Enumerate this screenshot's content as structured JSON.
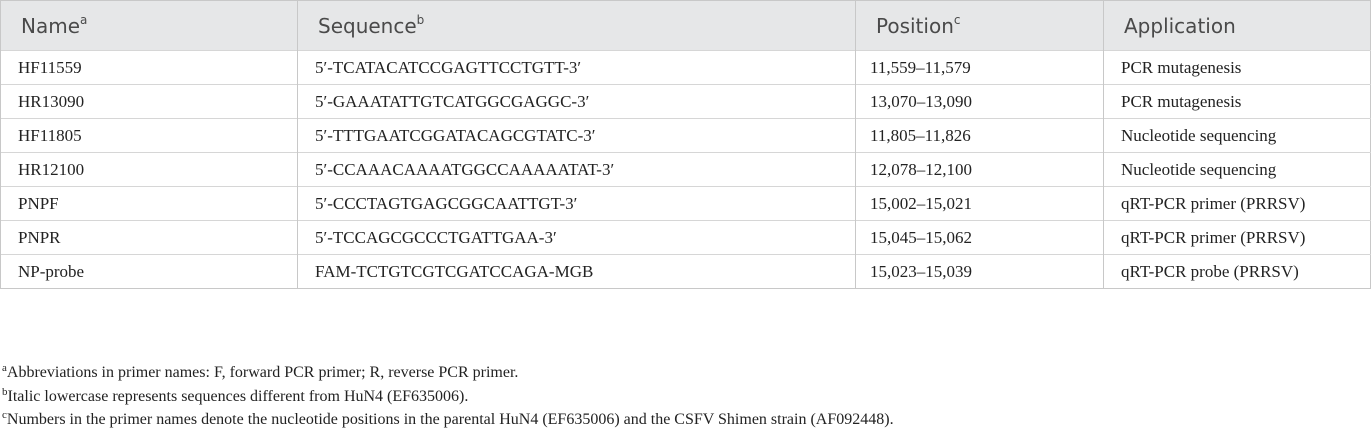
{
  "table": {
    "columns": [
      {
        "label": "Name",
        "note": "a"
      },
      {
        "label": "Sequence",
        "note": "b"
      },
      {
        "label": "Position",
        "note": "c"
      },
      {
        "label": "Application"
      }
    ],
    "rows": [
      [
        "HF11559",
        "5′-TCATACATCCGAGTTCCTGTT-3′",
        "11,559–11,579",
        "PCR mutagenesis"
      ],
      [
        "HR13090",
        "5′-GAAATATTGTCATGGCGAGGC-3′",
        "13,070–13,090",
        "PCR mutagenesis"
      ],
      [
        "HF11805",
        "5′-TTTGAATCGGATACAGCGTATC-3′",
        "11,805–11,826",
        "Nucleotide sequencing"
      ],
      [
        "HR12100",
        "5′-CCAAACAAAATGGCCAAAAATAT-3′",
        "12,078–12,100",
        "Nucleotide sequencing"
      ],
      [
        "PNPF",
        "5′-CCCTAGTGAGCGGCAATTGT-3′",
        "15,002–15,021",
        "qRT-PCR primer (PRRSV)"
      ],
      [
        "PNPR",
        "5′-TCCAGCGCCCTGATTGAA-3′",
        "15,045–15,062",
        "qRT-PCR primer (PRRSV)"
      ],
      [
        "NP-probe",
        "FAM-TCTGTCGTCGATCCAGA-MGB",
        "15,023–15,039",
        "qRT-PCR probe (PRRSV)"
      ]
    ]
  },
  "footnotes": [
    {
      "mark": "a",
      "text": "Abbreviations in primer names: F, forward PCR primer; R, reverse PCR primer."
    },
    {
      "mark": "b",
      "text": "Italic lowercase represents sequences different from HuN4 (EF635006)."
    },
    {
      "mark": "c",
      "text": "Numbers in the primer names denote the nucleotide positions in the parental HuN4 (EF635006) and the CSFV Shimen strain (AF092448)."
    }
  ]
}
